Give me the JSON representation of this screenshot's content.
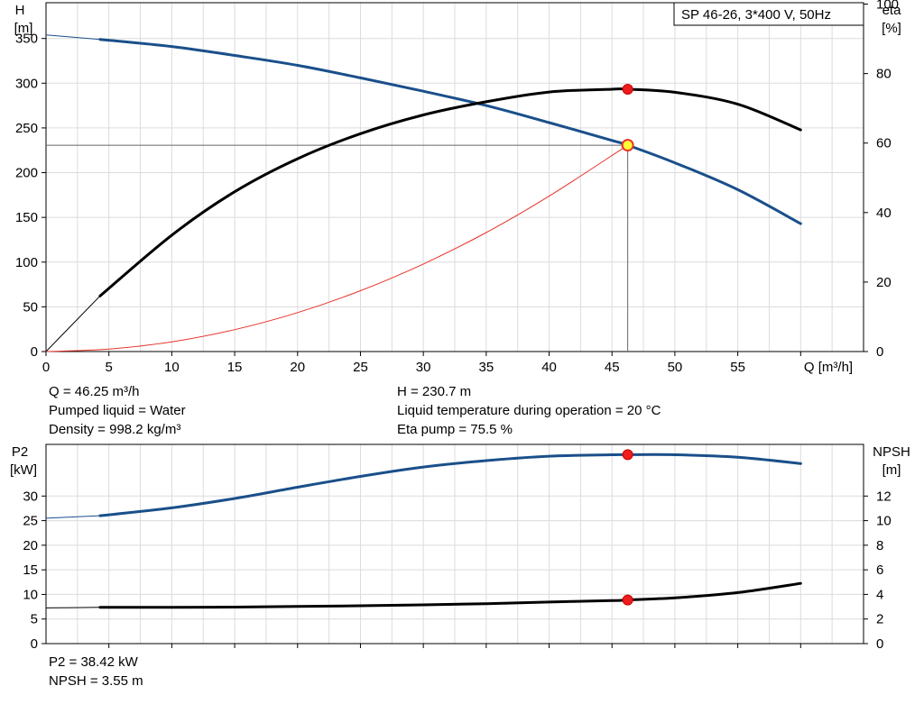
{
  "chart_data": [
    {
      "type": "line",
      "legend_box": "SP 46-26, 3*400 V, 50Hz",
      "legend_placement": "top-right",
      "grid": true,
      "xlabel": "Q [m³/h]",
      "xticks": [
        0,
        5,
        10,
        15,
        20,
        25,
        30,
        35,
        40,
        45,
        50,
        55
      ],
      "xlim": [
        0,
        65
      ],
      "left_axis": {
        "label": "H",
        "unit": "[m]",
        "ticks": [
          0,
          50,
          100,
          150,
          200,
          250,
          300,
          350
        ],
        "lim": [
          0,
          390
        ]
      },
      "right_axis": {
        "label": "eta",
        "unit": "[%]",
        "ticks": [
          0,
          20,
          40,
          60,
          80,
          100
        ],
        "lim": [
          0,
          100.4
        ]
      },
      "series": [
        {
          "axis": "left",
          "color": "#1a4f8a",
          "x": [
            0,
            4.3,
            10,
            15,
            20,
            25,
            30,
            35,
            40,
            45,
            46.25,
            50,
            55,
            60
          ],
          "y": [
            354,
            349,
            341,
            331,
            320,
            306,
            291,
            275,
            256,
            236,
            230.7,
            211,
            181,
            143
          ],
          "x_ext": 4.3
        },
        {
          "axis": "right",
          "color": "#000000",
          "x": [
            0,
            4.3,
            10,
            15,
            20,
            25,
            30,
            35,
            40,
            45,
            46.25,
            50,
            55,
            60
          ],
          "y": [
            0,
            16,
            33.5,
            46,
            55.5,
            62.7,
            68.1,
            71.9,
            74.7,
            75.5,
            75.5,
            74.6,
            71.2,
            63.8
          ],
          "x_ext": 4.3
        },
        {
          "axis": "left",
          "color": "#e8322a",
          "thin": true,
          "x": [
            0,
            5,
            10,
            15,
            20,
            25,
            30,
            35,
            40,
            46.25
          ],
          "y": [
            0,
            2.7,
            10.9,
            24.5,
            43.5,
            68,
            97.9,
            133,
            173.7,
            230.7
          ]
        }
      ],
      "operating_point": {
        "x": 46.25,
        "h": 230.7,
        "eta": 75.5
      },
      "info": {
        "q": "Q = 46.25 m³/h",
        "liquid": "Pumped liquid = Water",
        "density": "Density = 998.2 kg/m³",
        "h": "H = 230.7 m",
        "temp": "Liquid temperature during operation = 20 °C",
        "eta": "Eta pump = 75.5 %"
      }
    },
    {
      "type": "line",
      "grid": true,
      "xlim": [
        0,
        65
      ],
      "left_axis": {
        "label": "P2",
        "unit": "[kW]",
        "ticks": [
          0,
          5,
          10,
          15,
          20,
          25,
          30
        ],
        "lim": [
          0,
          40.5
        ]
      },
      "right_axis": {
        "label": "NPSH",
        "unit": "[m]",
        "ticks": [
          0,
          2,
          4,
          6,
          8,
          10,
          12
        ],
        "lim": [
          0,
          16.2
        ]
      },
      "series": [
        {
          "axis": "left",
          "color": "#1a4f8a",
          "x": [
            0,
            4.3,
            10,
            15,
            20,
            25,
            30,
            35,
            40,
            45,
            46.25,
            50,
            55,
            60
          ],
          "y": [
            25.5,
            26,
            27.6,
            29.5,
            31.8,
            34,
            35.9,
            37.2,
            38.1,
            38.4,
            38.42,
            38.4,
            37.9,
            36.6
          ],
          "x_ext": 4.3
        },
        {
          "axis": "right",
          "color": "#000000",
          "x": [
            0,
            4.3,
            10,
            15,
            20,
            25,
            30,
            35,
            40,
            45,
            46.25,
            50,
            55,
            60
          ],
          "y": [
            2.9,
            2.95,
            2.95,
            2.97,
            3.02,
            3.08,
            3.15,
            3.25,
            3.38,
            3.5,
            3.55,
            3.72,
            4.15,
            4.9
          ],
          "x_ext": 4.3
        }
      ],
      "operating_point": {
        "x": 46.25,
        "p2": 38.42,
        "npsh": 3.55
      },
      "info": {
        "p2": "P2 = 38.42 kW",
        "npsh": "NPSH = 3.55 m"
      }
    }
  ]
}
